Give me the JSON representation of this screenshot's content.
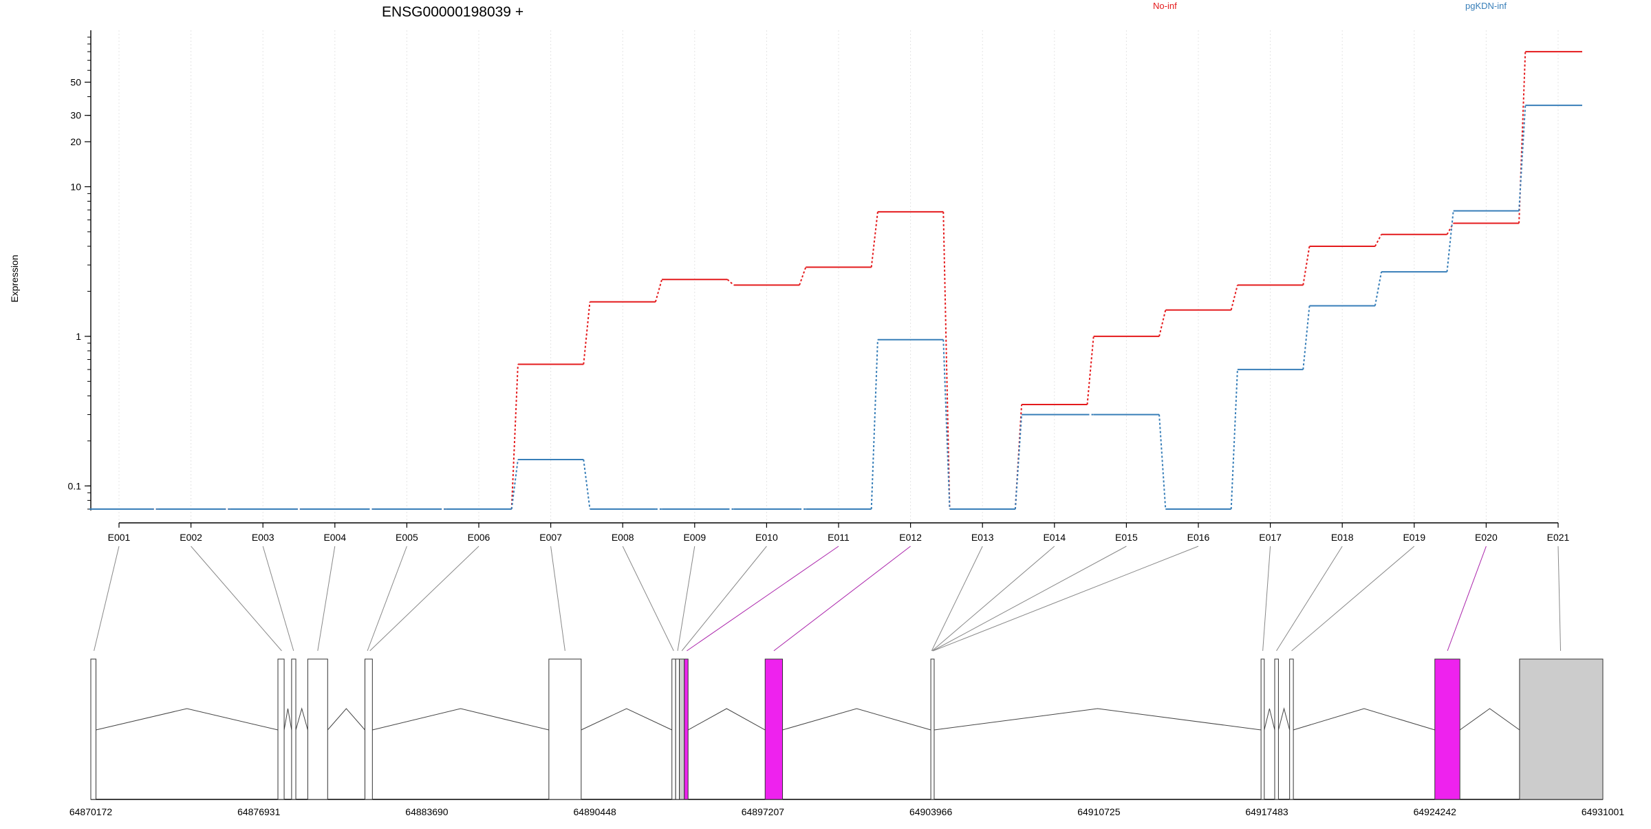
{
  "chart_data": {
    "type": "line",
    "title": "ENSG00000198039 +",
    "ylabel": "Expression",
    "xlabel": "",
    "y_scale": "log",
    "ylim": [
      0.07,
      100
    ],
    "y_ticks": [
      {
        "value": 0.1,
        "label": "0.1"
      },
      {
        "value": 1,
        "label": "1"
      },
      {
        "value": 10,
        "label": "10"
      },
      {
        "value": 20,
        "label": "20"
      },
      {
        "value": 30,
        "label": "30"
      },
      {
        "value": 50,
        "label": "50"
      }
    ],
    "grid": "vertical dotted",
    "legend_position": "top",
    "categories": [
      "E001",
      "E002",
      "E003",
      "E004",
      "E005",
      "E006",
      "E007",
      "E008",
      "E009",
      "E010",
      "E011",
      "E012",
      "E013",
      "E014",
      "E015",
      "E016",
      "E017",
      "E018",
      "E019",
      "E020",
      "E021"
    ],
    "series": [
      {
        "name": "No-inf",
        "color": "#e41a1c",
        "values": [
          0.07,
          0.07,
          0.07,
          0.07,
          0.07,
          0.07,
          0.65,
          1.7,
          2.4,
          2.2,
          2.9,
          6.8,
          0.07,
          0.35,
          1.0,
          1.5,
          2.2,
          4.0,
          4.8,
          5.7,
          80
        ]
      },
      {
        "name": "pgKDN-inf",
        "color": "#377eb8",
        "values": [
          0.07,
          0.07,
          0.07,
          0.07,
          0.07,
          0.07,
          0.15,
          0.07,
          0.07,
          0.07,
          0.07,
          0.95,
          0.07,
          0.3,
          0.3,
          0.07,
          0.6,
          1.6,
          2.7,
          6.9,
          35
        ]
      }
    ],
    "gene_model": {
      "coordinate_labels": [
        "64870172",
        "64876931",
        "64883690",
        "64890448",
        "64897207",
        "64903966",
        "64910725",
        "64917483",
        "64924242",
        "64931001"
      ],
      "exons": [
        {
          "start": 64870172,
          "end": 64870380,
          "fill": "#ffffff"
        },
        {
          "start": 64877700,
          "end": 64877950,
          "fill": "#ffffff"
        },
        {
          "start": 64878250,
          "end": 64878420,
          "fill": "#ffffff"
        },
        {
          "start": 64878900,
          "end": 64879700,
          "fill": "#ffffff"
        },
        {
          "start": 64881200,
          "end": 64881500,
          "fill": "#ffffff"
        },
        {
          "start": 64888600,
          "end": 64889900,
          "fill": "#ffffff"
        },
        {
          "start": 64893550,
          "end": 64893700,
          "fill": "#ffffff"
        },
        {
          "start": 64893700,
          "end": 64893850,
          "fill": "#ffffff"
        },
        {
          "start": 64893850,
          "end": 64894050,
          "fill": "#cccccc"
        },
        {
          "start": 64894050,
          "end": 64894200,
          "fill": "#ee22ee"
        },
        {
          "start": 64897300,
          "end": 64898000,
          "fill": "#ee22ee"
        },
        {
          "start": 64903966,
          "end": 64904100,
          "fill": "#ffffff"
        },
        {
          "start": 64917250,
          "end": 64917380,
          "fill": "#ffffff"
        },
        {
          "start": 64917800,
          "end": 64917950,
          "fill": "#ffffff"
        },
        {
          "start": 64918400,
          "end": 64918550,
          "fill": "#ffffff"
        },
        {
          "start": 64924242,
          "end": 64925250,
          "fill": "#ee22ee"
        },
        {
          "start": 64927650,
          "end": 64931001,
          "fill": "#cccccc"
        }
      ],
      "exon_links": [
        {
          "exon": "E001",
          "gpos": 64870300,
          "color": "#888888"
        },
        {
          "exon": "E002",
          "gpos": 64877850,
          "color": "#888888"
        },
        {
          "exon": "E003",
          "gpos": 64878330,
          "color": "#888888"
        },
        {
          "exon": "E004",
          "gpos": 64879300,
          "color": "#888888"
        },
        {
          "exon": "E005",
          "gpos": 64881300,
          "color": "#888888"
        },
        {
          "exon": "E006",
          "gpos": 64881400,
          "color": "#888888"
        },
        {
          "exon": "E007",
          "gpos": 64889250,
          "color": "#888888"
        },
        {
          "exon": "E008",
          "gpos": 64893620,
          "color": "#888888"
        },
        {
          "exon": "E009",
          "gpos": 64893780,
          "color": "#888888"
        },
        {
          "exon": "E010",
          "gpos": 64893950,
          "color": "#888888"
        },
        {
          "exon": "E011",
          "gpos": 64894150,
          "color": "#aa22aa"
        },
        {
          "exon": "E012",
          "gpos": 64897650,
          "color": "#aa22aa"
        },
        {
          "exon": "E013",
          "gpos": 64904000,
          "color": "#888888"
        },
        {
          "exon": "E014",
          "gpos": 64904020,
          "color": "#888888"
        },
        {
          "exon": "E015",
          "gpos": 64904040,
          "color": "#888888"
        },
        {
          "exon": "E016",
          "gpos": 64904060,
          "color": "#888888"
        },
        {
          "exon": "E017",
          "gpos": 64917320,
          "color": "#888888"
        },
        {
          "exon": "E018",
          "gpos": 64917870,
          "color": "#888888"
        },
        {
          "exon": "E019",
          "gpos": 64918480,
          "color": "#888888"
        },
        {
          "exon": "E020",
          "gpos": 64924750,
          "color": "#aa22aa"
        },
        {
          "exon": "E021",
          "gpos": 64929300,
          "color": "#888888"
        }
      ]
    }
  }
}
